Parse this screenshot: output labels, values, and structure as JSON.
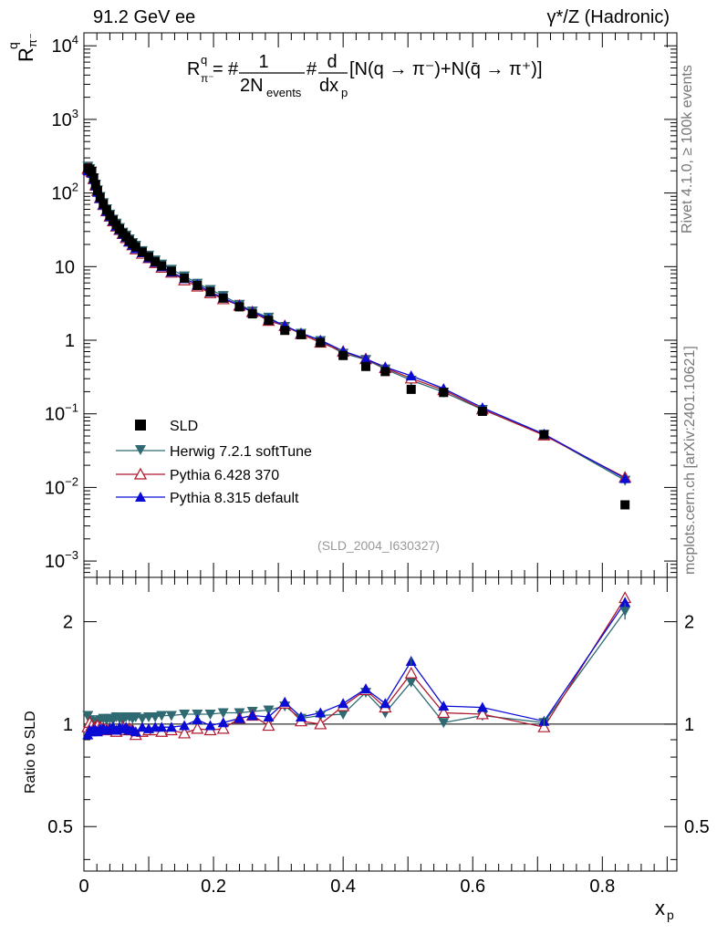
{
  "header": {
    "energy": "91.2 GeV ee",
    "process": "γ*/Z (Hadronic)"
  },
  "side_labels": {
    "rivet": "Rivet 4.1.0, ≥ 100k events",
    "mcplots": "mcplots.cern.ch [arXiv:2401.10621]"
  },
  "chart_data": [
    {
      "type": "line",
      "panel": "main",
      "title": "R_π^q = 1/(2N_events) dN/dx_p [N(q → π⁻) + N(q̄ → π⁺)]",
      "formula": {
        "lhs": "R",
        "lhs_sup": "q",
        "lhs_sub": "π⁻",
        "eq": "=",
        "frac1_num": "1",
        "frac1_den": "2N",
        "frac1_den_sub": "events",
        "frac2_num": "d",
        "frac2_den": "dx",
        "frac2_den_sub": "p",
        "tail": "[N(q → π⁻)+N(q̄ → π⁺)]"
      },
      "ylabel": "R",
      "ylabel_sup": "q",
      "ylabel_sub": "π⁻",
      "yscale": "log",
      "ylim": [
        0.0006,
        15000
      ],
      "xlim": [
        0,
        0.915
      ],
      "ytick_labels": [
        {
          "value": 10000,
          "base": "10",
          "exp": "4"
        },
        {
          "value": 1000,
          "base": "10",
          "exp": "3"
        },
        {
          "value": 100,
          "base": "10",
          "exp": "2"
        },
        {
          "value": 10,
          "base": "10",
          "exp": ""
        },
        {
          "value": 1,
          "base": "1",
          "exp": ""
        },
        {
          "value": 0.1,
          "base": "10",
          "exp": "−1"
        },
        {
          "value": 0.01,
          "base": "10",
          "exp": "−2"
        },
        {
          "value": 0.001,
          "base": "10",
          "exp": "−3"
        }
      ],
      "watermark": "(SLD_2004_I630327)",
      "x": [
        0.006,
        0.009,
        0.012,
        0.015,
        0.018,
        0.021,
        0.025,
        0.03,
        0.035,
        0.04,
        0.045,
        0.05,
        0.055,
        0.06,
        0.065,
        0.07,
        0.075,
        0.08,
        0.09,
        0.1,
        0.11,
        0.12,
        0.135,
        0.155,
        0.175,
        0.195,
        0.215,
        0.24,
        0.26,
        0.285,
        0.31,
        0.335,
        0.365,
        0.4,
        0.435,
        0.465,
        0.505,
        0.555,
        0.615,
        0.71,
        0.835
      ],
      "sld": [
        218,
        208,
        196,
        160,
        130,
        108,
        87,
        71,
        59,
        49.5,
        42.7,
        37,
        32.5,
        28.4,
        25.5,
        22.6,
        20.4,
        18.5,
        15.8,
        13.6,
        11.7,
        10.2,
        8.65,
        6.95,
        5.55,
        4.56,
        3.73,
        2.84,
        2.28,
        1.86,
        1.36,
        1.19,
        0.93,
        0.62,
        0.44,
        0.375,
        0.215,
        0.195,
        0.108,
        0.052,
        0.0058
      ],
      "series": [
        {
          "name": "Herwig 7.2.1 softTune",
          "color": "#2f6a73",
          "marker": "triangle-down",
          "ratio": [
            1.06,
            1.03,
            1.01,
            1.0,
            1.01,
            1.02,
            1.03,
            1.04,
            1.03,
            1.04,
            1.03,
            1.05,
            1.04,
            1.03,
            1.05,
            1.05,
            1.04,
            1.05,
            1.04,
            1.05,
            1.05,
            1.06,
            1.06,
            1.07,
            1.07,
            1.07,
            1.08,
            1.08,
            1.09,
            1.1,
            1.13,
            1.04,
            1.06,
            1.07,
            1.24,
            1.08,
            1.33,
            1.01,
            1.06,
            1.01,
            2.15
          ]
        },
        {
          "name": "Pythia 6.428 370",
          "color": "#b0182e",
          "marker": "triangle-up-open",
          "ratio": [
            0.98,
            1.01,
            0.99,
            0.97,
            0.98,
            0.99,
            0.98,
            0.97,
            0.96,
            0.97,
            0.97,
            0.95,
            0.97,
            0.98,
            0.96,
            0.97,
            0.96,
            0.93,
            0.95,
            0.96,
            0.96,
            0.95,
            0.96,
            0.94,
            0.97,
            0.96,
            0.97,
            1.04,
            1.06,
            0.99,
            1.15,
            1.02,
            1.0,
            1.13,
            1.26,
            1.12,
            1.41,
            1.08,
            1.07,
            0.98,
            2.35
          ]
        },
        {
          "name": "Pythia 8.315 default",
          "color": "#0b0bd6",
          "marker": "triangle-up",
          "ratio": [
            0.93,
            0.96,
            0.95,
            0.96,
            0.96,
            0.95,
            0.97,
            0.97,
            0.96,
            0.97,
            0.98,
            0.96,
            0.98,
            0.97,
            0.98,
            0.96,
            0.96,
            0.95,
            0.98,
            0.97,
            0.98,
            0.98,
            0.98,
            0.99,
            1.03,
            0.99,
            1.01,
            1.04,
            1.06,
            1.05,
            1.16,
            1.05,
            1.08,
            1.15,
            1.27,
            1.15,
            1.53,
            1.13,
            1.12,
            1.02,
            2.28
          ]
        }
      ],
      "legend": {
        "position": "lower-left",
        "data_label": "SLD"
      }
    },
    {
      "type": "line",
      "panel": "ratio",
      "ylabel": "Ratio to SLD",
      "xlabel": "x",
      "xlabel_sub": "p",
      "yscale": "log",
      "ylim": [
        0.37,
        2.7
      ],
      "ytick_labels": [
        "2",
        "1",
        "0.5"
      ],
      "ytick_values": [
        2,
        1,
        0.5
      ],
      "xtick_labels": [
        "0",
        "0.2",
        "0.4",
        "0.6",
        "0.8"
      ],
      "xtick_values": [
        0,
        0.2,
        0.4,
        0.6,
        0.8
      ]
    }
  ]
}
